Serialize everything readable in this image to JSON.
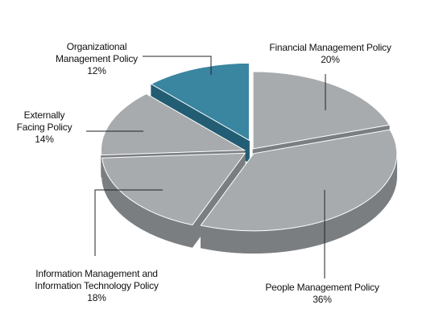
{
  "chart_data": {
    "type": "pie",
    "title": "",
    "slices": [
      {
        "label": "Financial Management Policy",
        "label_lines": [
          "Financial Management Policy"
        ],
        "value": 20,
        "value_text": "20%",
        "color": "#a8abae",
        "highlight": false
      },
      {
        "label": "People Management Policy",
        "label_lines": [
          "People Management Policy"
        ],
        "value": 36,
        "value_text": "36%",
        "color": "#a8abae",
        "highlight": false
      },
      {
        "label": "Information Management and Information Technology Policy",
        "label_lines": [
          "Information Management and",
          "Information Technology Policy"
        ],
        "value": 18,
        "value_text": "18%",
        "color": "#a8abae",
        "highlight": false
      },
      {
        "label": "Externally Facing Policy",
        "label_lines": [
          "Externally",
          "Facing Policy"
        ],
        "value": 14,
        "value_text": "14%",
        "color": "#a8abae",
        "highlight": false
      },
      {
        "label": "Organizational Management Policy",
        "label_lines": [
          "Organizational",
          "Management Policy"
        ],
        "value": 12,
        "value_text": "12%",
        "color": "#3a85a0",
        "highlight": true
      }
    ],
    "colors": {
      "slice_top": "#a8abae",
      "slice_side": "#7b7e81",
      "highlight_top": "#3a85a0",
      "highlight_side": "#225d73",
      "leader": "#222222"
    }
  }
}
